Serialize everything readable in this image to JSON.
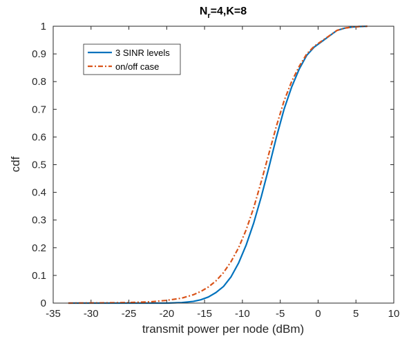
{
  "chart_data": {
    "type": "line",
    "title_main": "N",
    "title_sub": "r",
    "title_rest": "=4,K=8",
    "xlabel": "transmit power per node (dBm)",
    "ylabel": "cdf",
    "xlim": [
      -35,
      10
    ],
    "ylim": [
      0,
      1
    ],
    "xticks": [
      -35,
      -30,
      -25,
      -20,
      -15,
      -10,
      -5,
      0,
      5,
      10
    ],
    "yticks": [
      0,
      0.1,
      0.2,
      0.3,
      0.4,
      0.5,
      0.6,
      0.7,
      0.8,
      0.9,
      1
    ],
    "grid": false,
    "legend_position": "top-left",
    "series": [
      {
        "name": "3 SINR levels",
        "color": "#0072BD",
        "style": "solid",
        "x": [
          -33,
          -25,
          -20,
          -18,
          -16.5,
          -15.5,
          -14.5,
          -13.5,
          -12.5,
          -11.5,
          -10.5,
          -9.5,
          -8.5,
          -7.5,
          -6.5,
          -5.5,
          -4.5,
          -3.5,
          -2.5,
          -1.5,
          -0.5,
          0.5,
          1.5,
          2.5,
          3.5,
          4.5,
          5.5,
          6.5
        ],
        "y": [
          0,
          0,
          0,
          0.002,
          0.006,
          0.012,
          0.022,
          0.038,
          0.06,
          0.095,
          0.145,
          0.21,
          0.29,
          0.385,
          0.49,
          0.6,
          0.7,
          0.78,
          0.845,
          0.895,
          0.925,
          0.945,
          0.965,
          0.985,
          0.993,
          0.997,
          0.999,
          1.0
        ]
      },
      {
        "name": "on/off case",
        "color": "#D95319",
        "style": "dashdot",
        "x": [
          -33,
          -28,
          -25,
          -22,
          -20,
          -18,
          -16.5,
          -15.5,
          -14.5,
          -13.5,
          -12.5,
          -11.5,
          -10.5,
          -9.5,
          -8.5,
          -7.5,
          -6.5,
          -5.5,
          -4.5,
          -3.5,
          -2.5,
          -1.5,
          -0.5,
          0.5,
          1.5,
          2.5,
          3.5,
          4.5,
          5.5,
          6.5
        ],
        "y": [
          0,
          0.001,
          0.002,
          0.005,
          0.01,
          0.018,
          0.03,
          0.042,
          0.058,
          0.08,
          0.11,
          0.15,
          0.2,
          0.265,
          0.345,
          0.44,
          0.54,
          0.64,
          0.73,
          0.8,
          0.855,
          0.9,
          0.928,
          0.947,
          0.966,
          0.985,
          0.993,
          0.997,
          0.999,
          1.0
        ]
      }
    ]
  }
}
